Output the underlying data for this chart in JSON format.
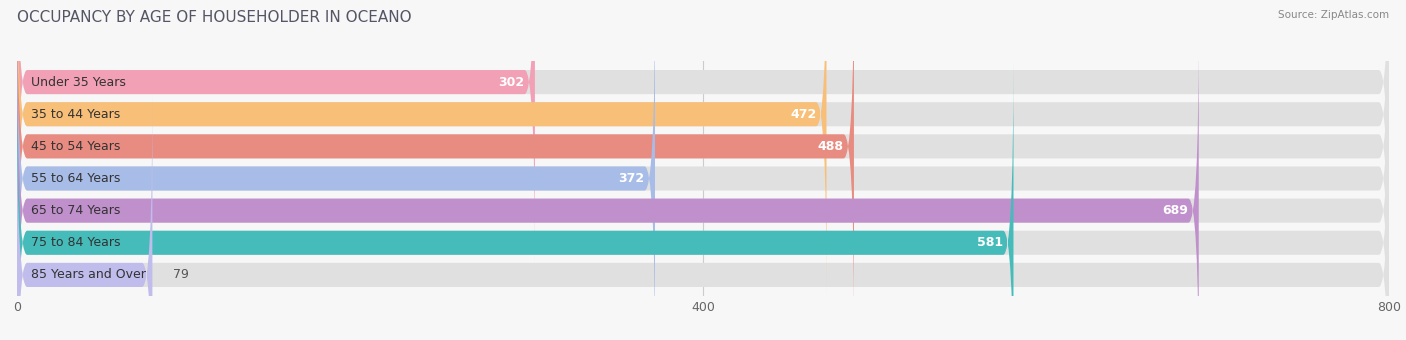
{
  "title": "OCCUPANCY BY AGE OF HOUSEHOLDER IN OCEANO",
  "source": "Source: ZipAtlas.com",
  "categories": [
    "Under 35 Years",
    "35 to 44 Years",
    "45 to 54 Years",
    "55 to 64 Years",
    "65 to 74 Years",
    "75 to 84 Years",
    "85 Years and Over"
  ],
  "values": [
    302,
    472,
    488,
    372,
    689,
    581,
    79
  ],
  "bar_colors": [
    "#F2A0B5",
    "#F8BF78",
    "#E88C82",
    "#A8BCE8",
    "#C090CC",
    "#45BCBA",
    "#C0BCEC"
  ],
  "xlim": [
    0,
    800
  ],
  "xticks": [
    0,
    400,
    800
  ],
  "background_color": "#f7f7f7",
  "bar_bg_color": "#e0e0e0",
  "title_fontsize": 11,
  "label_fontsize": 9,
  "value_fontsize": 9
}
